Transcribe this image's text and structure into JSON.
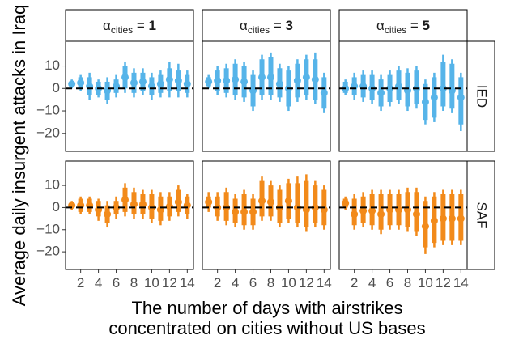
{
  "chart_data": {
    "type": "scatter",
    "title": "",
    "xlabel_line1": "The number of days with airstrikes",
    "xlabel_line2": "concentrated on cities without US bases",
    "ylabel": "Average daily insurgent attacks in Iraq",
    "x": [
      1,
      2,
      3,
      4,
      5,
      6,
      7,
      8,
      9,
      10,
      11,
      12,
      13,
      14
    ],
    "x_ticks": [
      2,
      4,
      6,
      8,
      10,
      12,
      14
    ],
    "x_tick_labels": [
      "2",
      "4",
      "6",
      "8",
      "10",
      "12",
      "14"
    ],
    "xlim": [
      0.3,
      14.7
    ],
    "ylim": [
      -28,
      21
    ],
    "y_ticks": [
      -20,
      -10,
      0,
      10
    ],
    "y_tick_labels": [
      "−20",
      "−10",
      "0",
      "10"
    ],
    "alpha_symbol": "α",
    "alpha_subscript": "cities",
    "alpha_equals": " = ",
    "alpha_values": [
      "1",
      "3",
      "5"
    ],
    "row_labels": [
      "IED",
      "SAF"
    ],
    "row_colors": [
      "#56B4E9",
      "#F28A1A"
    ],
    "panels": [
      {
        "row": "IED",
        "alpha": "1",
        "estimates": [
          2,
          2.5,
          1,
          0,
          -1,
          1,
          5,
          2.5,
          3,
          1,
          2,
          4,
          3.5,
          2
        ],
        "ci80": [
          [
            1,
            3
          ],
          [
            0,
            5
          ],
          [
            -3,
            5
          ],
          [
            -3,
            3
          ],
          [
            -5,
            3
          ],
          [
            -2,
            4
          ],
          [
            0,
            10
          ],
          [
            -2,
            7
          ],
          [
            -1,
            7
          ],
          [
            -3,
            5
          ],
          [
            -2,
            6
          ],
          [
            -1,
            9
          ],
          [
            -1,
            8
          ],
          [
            -2,
            6
          ]
        ],
        "ci95": [
          [
            0,
            4
          ],
          [
            -1,
            6
          ],
          [
            -5,
            7
          ],
          [
            -4,
            4
          ],
          [
            -7,
            5
          ],
          [
            -4,
            6
          ],
          [
            -2,
            12
          ],
          [
            -4,
            9
          ],
          [
            -3,
            9
          ],
          [
            -5,
            7
          ],
          [
            -4,
            8
          ],
          [
            -4,
            12
          ],
          [
            -4,
            11
          ],
          [
            -4,
            8
          ]
        ]
      },
      {
        "row": "IED",
        "alpha": "3",
        "estimates": [
          3,
          3.5,
          3.5,
          4,
          3,
          -1,
          5,
          5,
          2,
          0,
          3.5,
          5,
          4,
          -2
        ],
        "ci80": [
          [
            1,
            5
          ],
          [
            -1,
            8
          ],
          [
            -2,
            9
          ],
          [
            -3,
            11
          ],
          [
            -4,
            10
          ],
          [
            -8,
            6
          ],
          [
            -3,
            13
          ],
          [
            -3,
            14
          ],
          [
            -4,
            9
          ],
          [
            -8,
            8
          ],
          [
            -4,
            11
          ],
          [
            -3,
            13
          ],
          [
            -5,
            13
          ],
          [
            -9,
            5
          ]
        ],
        "ci95": [
          [
            0,
            6
          ],
          [
            -3,
            10
          ],
          [
            -4,
            11
          ],
          [
            -5,
            13
          ],
          [
            -6,
            12
          ],
          [
            -10,
            8
          ],
          [
            -5,
            15
          ],
          [
            -5,
            16
          ],
          [
            -6,
            11
          ],
          [
            -10,
            10
          ],
          [
            -6,
            13
          ],
          [
            -5,
            15
          ],
          [
            -7,
            16
          ],
          [
            -11,
            7
          ]
        ]
      },
      {
        "row": "IED",
        "alpha": "5",
        "estimates": [
          0,
          1,
          1,
          0,
          -2,
          0,
          1,
          -1,
          0,
          -6,
          -4,
          0,
          -1,
          -4
        ],
        "ci80": [
          [
            -2,
            3
          ],
          [
            -3,
            5
          ],
          [
            -4,
            6
          ],
          [
            -5,
            6
          ],
          [
            -8,
            4
          ],
          [
            -6,
            6
          ],
          [
            -5,
            8
          ],
          [
            -8,
            7
          ],
          [
            -7,
            8
          ],
          [
            -14,
            2
          ],
          [
            -13,
            5
          ],
          [
            -8,
            12
          ],
          [
            -9,
            11
          ],
          [
            -16,
            5
          ]
        ],
        "ci95": [
          [
            -3,
            4
          ],
          [
            -5,
            7
          ],
          [
            -6,
            8
          ],
          [
            -7,
            8
          ],
          [
            -10,
            6
          ],
          [
            -8,
            8
          ],
          [
            -7,
            10
          ],
          [
            -10,
            9
          ],
          [
            -9,
            10
          ],
          [
            -16,
            4
          ],
          [
            -15,
            7
          ],
          [
            -10,
            15
          ],
          [
            -11,
            13
          ],
          [
            -19,
            7
          ]
        ]
      },
      {
        "row": "SAF",
        "alpha": "1",
        "estimates": [
          1,
          1,
          1,
          -1,
          -3,
          0,
          3.5,
          1.5,
          1.5,
          0,
          -1,
          0.5,
          2.5,
          1
        ],
        "ci80": [
          [
            0,
            2
          ],
          [
            -2,
            4
          ],
          [
            -2,
            4
          ],
          [
            -4,
            3
          ],
          [
            -7,
            1
          ],
          [
            -3,
            3
          ],
          [
            -2,
            9
          ],
          [
            -3,
            7
          ],
          [
            -3,
            6
          ],
          [
            -5,
            6
          ],
          [
            -6,
            5
          ],
          [
            -4,
            5
          ],
          [
            -2,
            8
          ],
          [
            -3,
            5
          ]
        ],
        "ci95": [
          [
            -1,
            3
          ],
          [
            -3,
            5
          ],
          [
            -3,
            5
          ],
          [
            -6,
            4
          ],
          [
            -9,
            3
          ],
          [
            -5,
            5
          ],
          [
            -4,
            11
          ],
          [
            -5,
            9
          ],
          [
            -5,
            8
          ],
          [
            -7,
            8
          ],
          [
            -8,
            7
          ],
          [
            -6,
            7
          ],
          [
            -4,
            10
          ],
          [
            -5,
            6
          ]
        ]
      },
      {
        "row": "SAF",
        "alpha": "3",
        "estimates": [
          2.5,
          0,
          0,
          -2,
          -2,
          -2,
          3,
          2.5,
          0,
          3,
          0,
          -1,
          0,
          -1
        ],
        "ci80": [
          [
            0,
            5
          ],
          [
            -4,
            5
          ],
          [
            -6,
            7
          ],
          [
            -7,
            4
          ],
          [
            -8,
            6
          ],
          [
            -8,
            4
          ],
          [
            -4,
            12
          ],
          [
            -4,
            10
          ],
          [
            -7,
            8
          ],
          [
            -5,
            11
          ],
          [
            -7,
            11
          ],
          [
            -9,
            12
          ],
          [
            -7,
            10
          ],
          [
            -8,
            8
          ]
        ],
        "ci95": [
          [
            -2,
            7
          ],
          [
            -6,
            7
          ],
          [
            -8,
            9
          ],
          [
            -9,
            6
          ],
          [
            -10,
            8
          ],
          [
            -10,
            6
          ],
          [
            -6,
            14
          ],
          [
            -6,
            12
          ],
          [
            -9,
            10
          ],
          [
            -7,
            13
          ],
          [
            -9,
            14
          ],
          [
            -11,
            15
          ],
          [
            -9,
            12
          ],
          [
            -10,
            10
          ]
        ]
      },
      {
        "row": "SAF",
        "alpha": "5",
        "estimates": [
          2,
          -3,
          -1.5,
          -1.5,
          -3,
          -1,
          -1,
          -1,
          -3,
          -8.5,
          -6,
          -5,
          -5,
          -5
        ],
        "ci80": [
          [
            0,
            4
          ],
          [
            -8,
            4
          ],
          [
            -7,
            5
          ],
          [
            -8,
            6
          ],
          [
            -10,
            6
          ],
          [
            -8,
            6
          ],
          [
            -8,
            6
          ],
          [
            -9,
            7
          ],
          [
            -11,
            7
          ],
          [
            -18,
            3
          ],
          [
            -16,
            5
          ],
          [
            -15,
            6
          ],
          [
            -15,
            6
          ],
          [
            -15,
            6
          ]
        ],
        "ci95": [
          [
            -1,
            5
          ],
          [
            -10,
            6
          ],
          [
            -9,
            7
          ],
          [
            -10,
            8
          ],
          [
            -12,
            8
          ],
          [
            -10,
            8
          ],
          [
            -10,
            8
          ],
          [
            -11,
            9
          ],
          [
            -13,
            9
          ],
          [
            -21,
            5
          ],
          [
            -18,
            7
          ],
          [
            -17,
            8
          ],
          [
            -17,
            8
          ],
          [
            -17,
            8
          ]
        ]
      }
    ]
  }
}
